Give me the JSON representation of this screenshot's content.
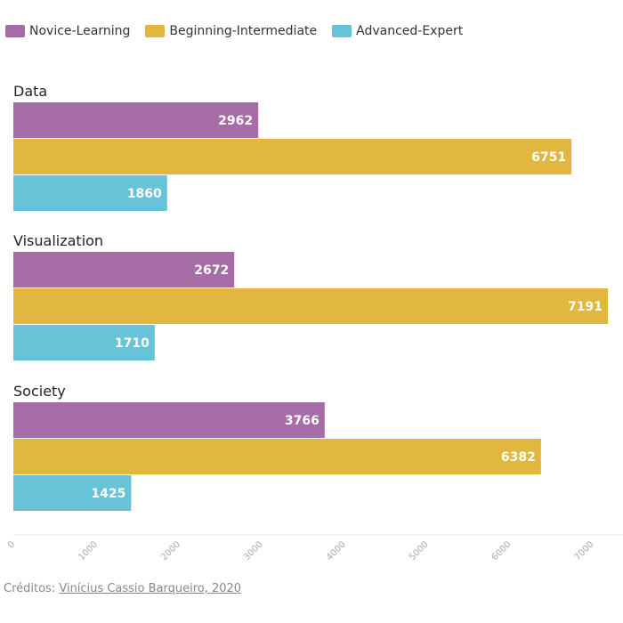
{
  "chart_data": {
    "type": "bar",
    "orientation": "horizontal",
    "categories": [
      "Data",
      "Visualization",
      "Society"
    ],
    "series": [
      {
        "name": "Novice-Learning",
        "color": "#a66ca6",
        "values": [
          2962,
          2672,
          3766
        ]
      },
      {
        "name": "Beginning-Intermediate",
        "color": "#e1b73f",
        "values": [
          6751,
          7191,
          6382
        ]
      },
      {
        "name": "Advanced-Expert",
        "color": "#68c3d8",
        "values": [
          1860,
          1710,
          1425
        ]
      }
    ],
    "xlim": [
      0,
      7200
    ],
    "x_ticks": [
      0,
      1000,
      2000,
      3000,
      4000,
      5000,
      6000,
      7000
    ],
    "legend_position": "top-left",
    "grid": false
  },
  "credits": {
    "prefix": "Créditos:",
    "author": "Vinícius Cassio Barqueiro, 2020"
  }
}
